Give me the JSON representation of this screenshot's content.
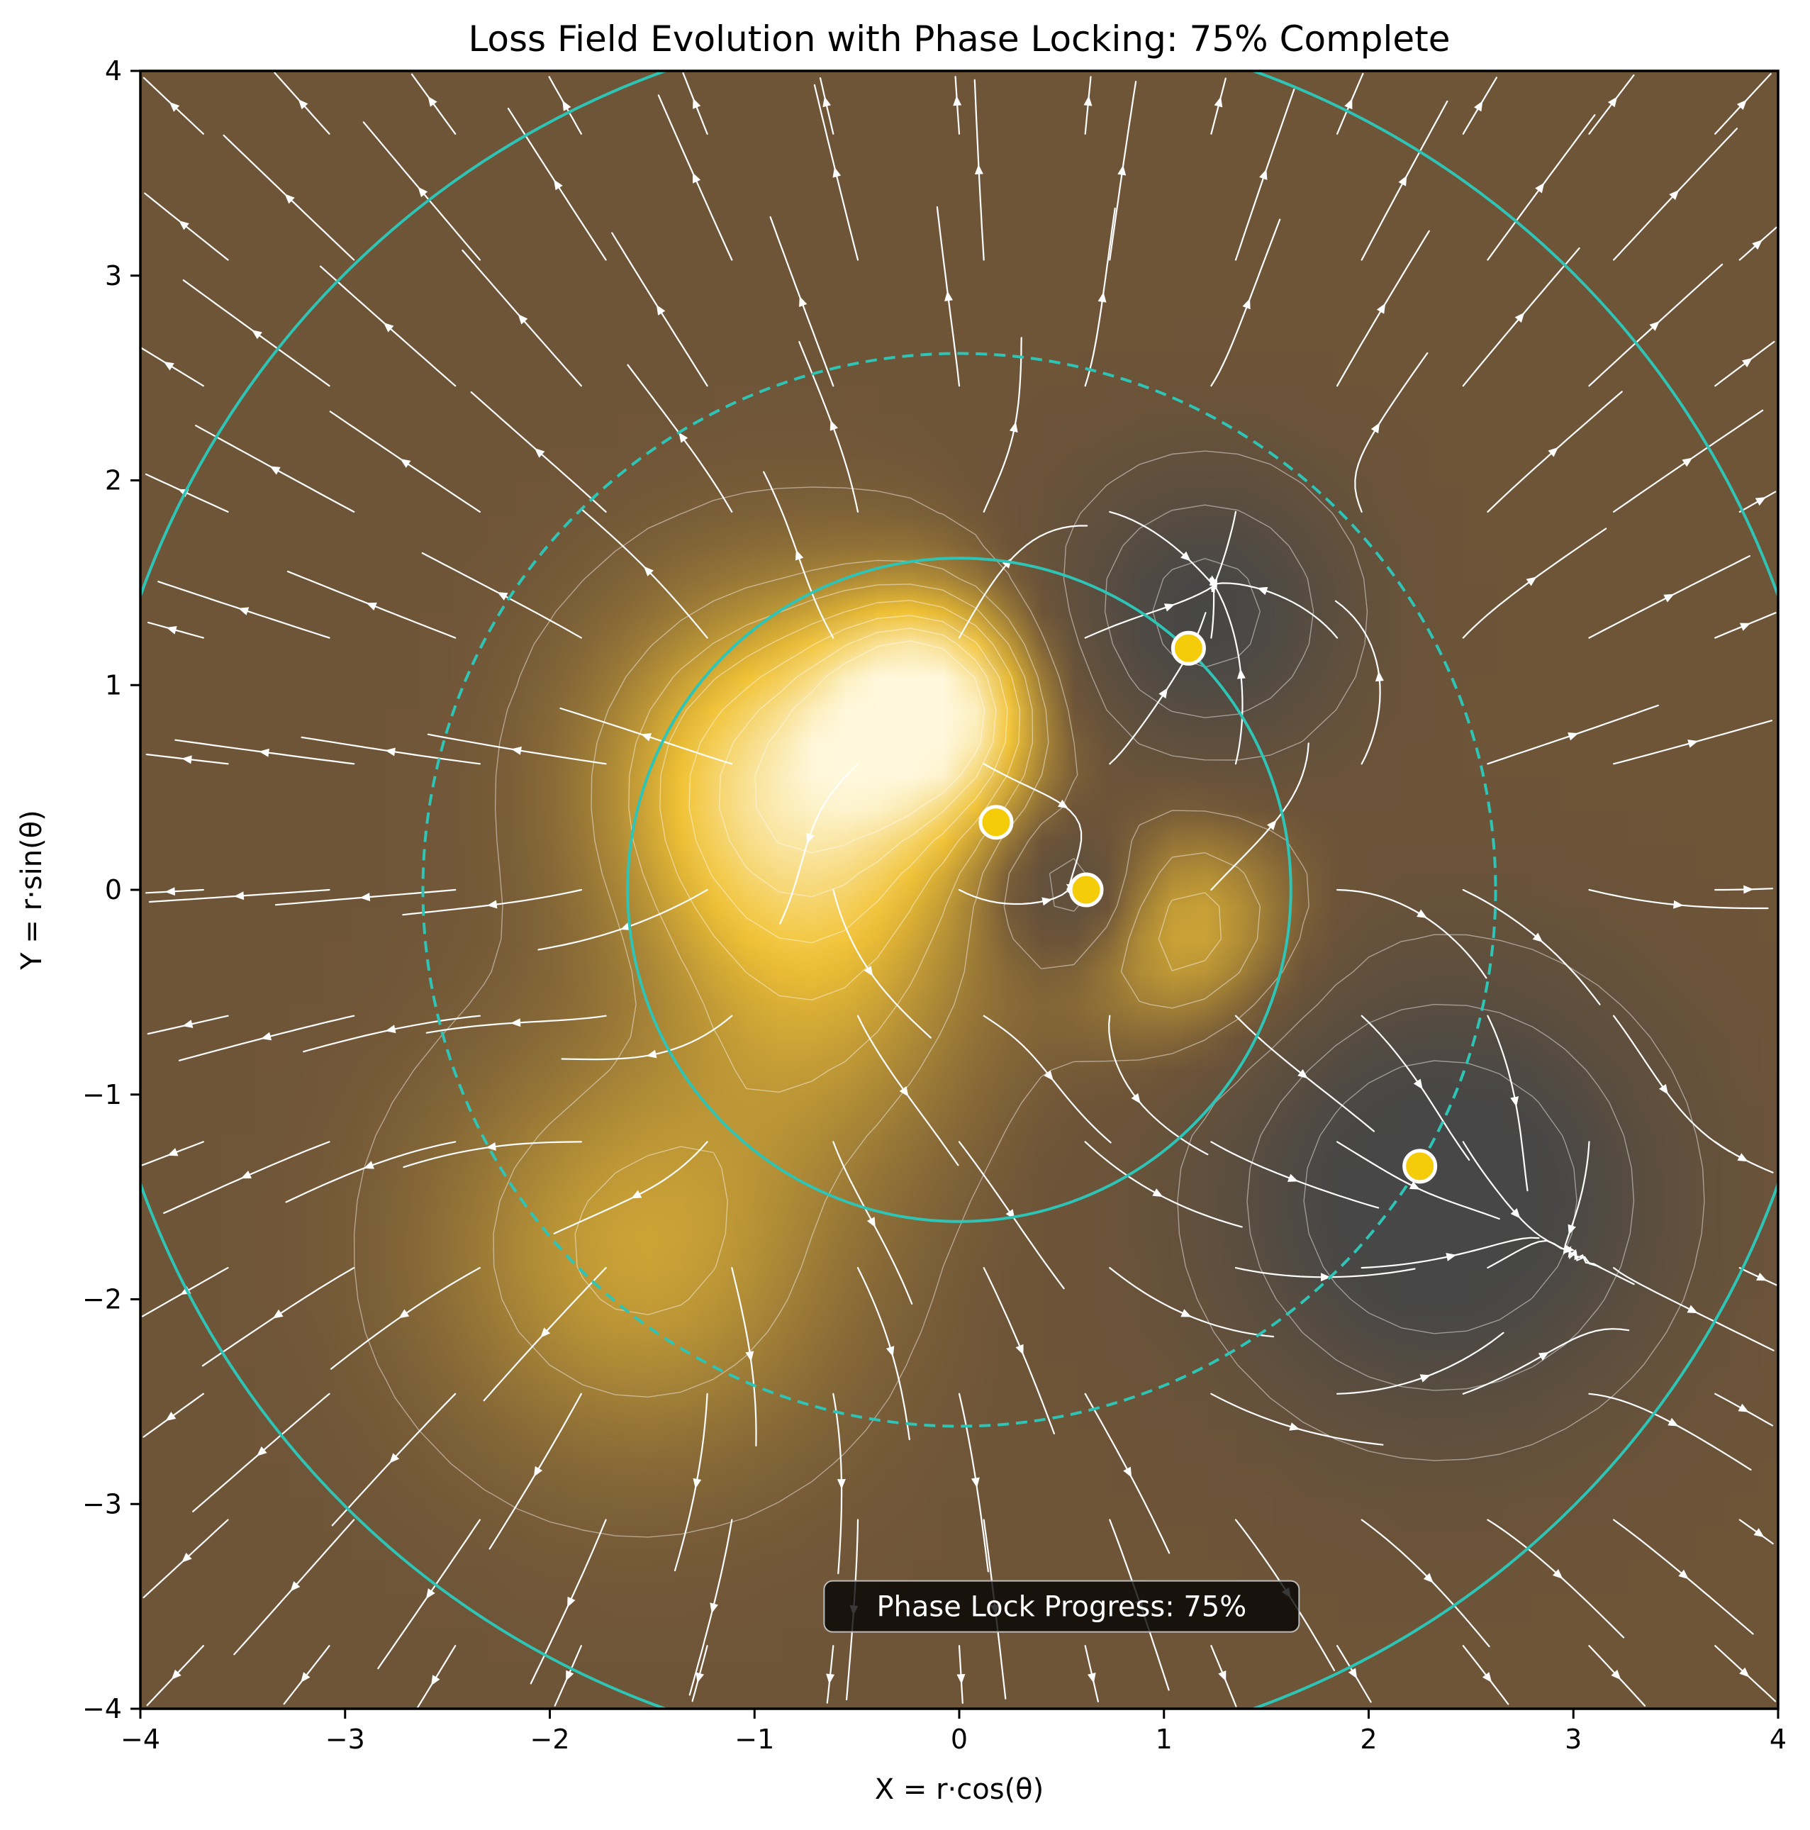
{
  "chart_data": {
    "type": "heatmap",
    "title": "Loss Field Evolution with Phase Locking: 75% Complete",
    "xlabel": "X = r·cos(θ)",
    "ylabel": "Y = r·sin(θ)",
    "xlim": [
      -4,
      4
    ],
    "ylim": [
      -4,
      4
    ],
    "xticks": [
      -4,
      -3,
      -2,
      -1,
      0,
      1,
      2,
      3,
      4
    ],
    "yticks": [
      -4,
      -3,
      -2,
      -1,
      0,
      1,
      2,
      3,
      4
    ],
    "xtick_labels": [
      "−4",
      "−3",
      "−2",
      "−1",
      "0",
      "1",
      "2",
      "3",
      "4"
    ],
    "ytick_labels": [
      "−4",
      "−3",
      "−2",
      "−1",
      "0",
      "1",
      "2",
      "3",
      "4"
    ],
    "grid": false,
    "colors": {
      "base": "#6f5538",
      "peak": "#fff8dc",
      "mid": "#f2c335",
      "sink": "#474747",
      "ring": "#2ec4b6",
      "streamline": "#ffffff",
      "marker": "#f5cc0a"
    },
    "field_sources": [
      {
        "x": -0.8,
        "y": 0.5,
        "strength": 1.0,
        "spread": 0.35
      },
      {
        "x": -0.15,
        "y": 0.9,
        "strength": 1.1,
        "spread": 0.12
      },
      {
        "x": 1.1,
        "y": -0.2,
        "strength": 0.55,
        "spread": 0.15
      },
      {
        "x": -1.55,
        "y": -1.75,
        "strength": 0.45,
        "spread": 0.45
      },
      {
        "x": -0.65,
        "y": -0.6,
        "strength": 0.3,
        "spread": 0.3
      }
    ],
    "field_sinks": [
      {
        "x": 2.35,
        "y": -1.5,
        "strength": 0.9,
        "spread": 0.55
      },
      {
        "x": 1.2,
        "y": 1.35,
        "strength": 0.7,
        "spread": 0.25
      },
      {
        "x": 0.55,
        "y": 0.0,
        "strength": 0.5,
        "spread": 0.06
      }
    ],
    "rings": [
      {
        "cx": 0,
        "cy": 0,
        "r": 1.62,
        "style": "solid"
      },
      {
        "cx": 0,
        "cy": 0,
        "r": 2.62,
        "style": "dashed"
      },
      {
        "cx": 0,
        "cy": 0,
        "r": 4.25,
        "style": "solid"
      }
    ],
    "points": [
      {
        "x": 1.12,
        "y": 1.18
      },
      {
        "x": 0.18,
        "y": 0.33
      },
      {
        "x": 0.62,
        "y": 0.0
      },
      {
        "x": 2.25,
        "y": -1.35
      }
    ],
    "annotation": {
      "text": "Phase Lock Progress: 75%",
      "x": 0.5,
      "y": -3.5
    }
  }
}
